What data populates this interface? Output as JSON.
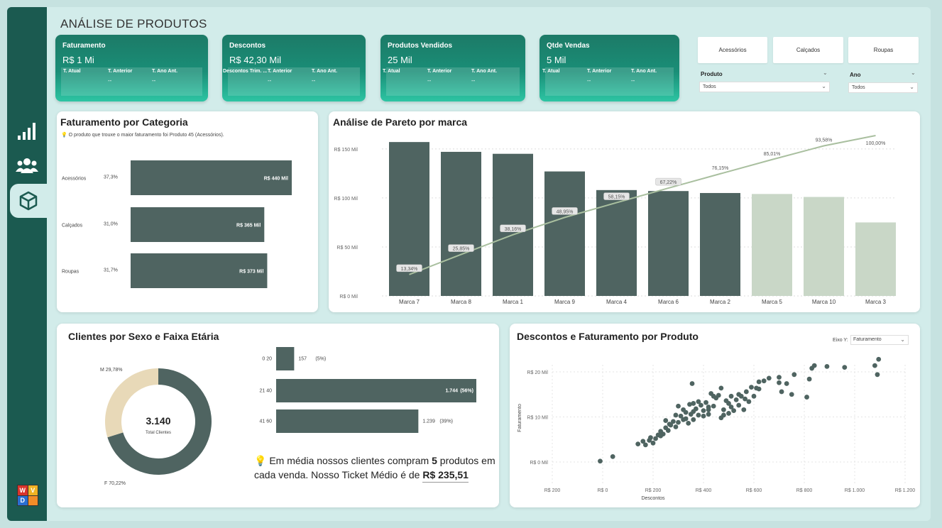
{
  "page_title": "ANÁLISE DE PRODUTOS",
  "colors": {
    "dark": "#4f6461",
    "light": "#c9d7c7",
    "accent": "#1a8e77",
    "cream": "#e8d9b8",
    "line": "#a9bf9f"
  },
  "kpis": [
    {
      "title": "Faturamento",
      "value": "R$ 1 Mi",
      "cols": [
        "T. Atual",
        "T. Anterior",
        "T. Ano Ant."
      ],
      "vals": [
        "",
        "--",
        "--"
      ]
    },
    {
      "title": "Descontos",
      "value": "R$ 42,30 Mil",
      "cols": [
        "Descontos Trim. ...",
        "T. Anterior",
        "T. Ano Ant."
      ],
      "vals": [
        "",
        "--",
        "--"
      ]
    },
    {
      "title": "Produtos Vendidos",
      "value": "25 Mil",
      "cols": [
        "T. Atual",
        "T. Anterior",
        "T. Ano Ant."
      ],
      "vals": [
        "",
        "--",
        "--"
      ]
    },
    {
      "title": "Qtde Vendas",
      "value": "5 Mil",
      "cols": [
        "T. Atual",
        "T. Anterior",
        "T. Ano Ant."
      ],
      "vals": [
        "",
        "--",
        "--"
      ]
    }
  ],
  "filters": {
    "categories": [
      "Acessórios",
      "Calçados",
      "Roupas"
    ],
    "produto": {
      "label": "Produto",
      "value": "Todos"
    },
    "ano": {
      "label": "Ano",
      "value": "Todos"
    }
  },
  "fat_categoria": {
    "title": "Faturamento por Categoria",
    "insight": "O produto que trouxe o maior faturamento foi Produto 45 (Acessórios).",
    "chart_data": {
      "type": "bar",
      "categories": [
        "Acessórios",
        "Calçados",
        "Roupas"
      ],
      "values": [
        440,
        365,
        373
      ],
      "value_labels": [
        "R$ 440 Mil",
        "R$ 365 Mil",
        "R$ 373 Mil"
      ],
      "percents": [
        "37,3%",
        "31,0%",
        "31,7%"
      ]
    }
  },
  "pareto": {
    "title": "Análise de Pareto por marca",
    "chart_data": {
      "type": "bar",
      "categories": [
        "Marca 7",
        "Marca 8",
        "Marca 1",
        "Marca 9",
        "Marca 4",
        "Marca 6",
        "Marca 2",
        "Marca 5",
        "Marca 10",
        "Marca 3"
      ],
      "values": [
        157,
        147,
        145,
        127,
        108,
        107,
        105,
        104,
        101,
        75
      ],
      "highlight": [
        true,
        true,
        true,
        true,
        true,
        true,
        true,
        false,
        false,
        false
      ],
      "cumulative_pct": [
        13.34,
        25.85,
        38.16,
        48.95,
        58.15,
        67.22,
        76.15,
        85.01,
        93.58,
        100.0
      ],
      "cumulative_labels": [
        "13,34%",
        "25,85%",
        "38,16%",
        "48,95%",
        "58,15%",
        "67,22%",
        "76,15%",
        "85,01%",
        "93,58%",
        "100,00%"
      ],
      "ylim": [
        0,
        160
      ],
      "yticks": [
        0,
        50,
        100,
        150
      ],
      "ytick_labels": [
        "R$ 0 Mil",
        "R$ 50 Mil",
        "R$ 100 Mil",
        "R$ 150 Mil"
      ]
    }
  },
  "clientes": {
    "title": "Clientes por Sexo e Faixa Etária",
    "donut": {
      "total": "3.140",
      "total_label": "Total Clientes",
      "chart_data": {
        "type": "pie",
        "categories": [
          "F",
          "M"
        ],
        "values": [
          70.22,
          29.78
        ],
        "labels": [
          "F 70,22%",
          "M 29,78%"
        ]
      }
    },
    "age_bars": {
      "chart_data": {
        "type": "bar",
        "categories": [
          "0 20",
          "21 40",
          "41 60"
        ],
        "values": [
          157,
          1744,
          1239
        ],
        "count_labels": [
          "157",
          "1.744",
          "1.239"
        ],
        "pct_labels": [
          "(5%)",
          "(56%)",
          "(39%)"
        ]
      }
    },
    "insight_pre": "Em média nossos clientes compram ",
    "insight_num": "5",
    "insight_post": " produtos em cada venda. Nosso Ticket Médio é de",
    "ticket": "R$ 235,51"
  },
  "scatter": {
    "title": "Descontos e Faturamento por Produto",
    "axis_selector_label": "Eixo Y:",
    "axis_selector_value": "Faturamento",
    "chart_data": {
      "type": "scatter",
      "xlabel": "Descontos",
      "ylabel": "Faturamento",
      "xlim": [
        -200,
        1200
      ],
      "ylim": [
        0,
        25
      ],
      "xticks": [
        -200,
        0,
        200,
        400,
        600,
        800,
        1000,
        1200
      ],
      "xtick_labels": [
        "R$ 200",
        "R$ 0",
        "R$ 200",
        "R$ 400",
        "R$ 600",
        "R$ 800",
        "R$ 1.000",
        "R$ 1.200"
      ],
      "yticks": [
        0,
        10,
        20
      ],
      "ytick_labels": [
        "R$ 0 Mil",
        "R$ 10 Mil",
        "R$ 20 Mil"
      ],
      "points": [
        [
          -10,
          0.2
        ],
        [
          40,
          1.2
        ],
        [
          140,
          4
        ],
        [
          160,
          4.6
        ],
        [
          170,
          3.8
        ],
        [
          190,
          5.4
        ],
        [
          200,
          4.2
        ],
        [
          210,
          5.2
        ],
        [
          220,
          6
        ],
        [
          230,
          6.8
        ],
        [
          240,
          6.2
        ],
        [
          250,
          7.6
        ],
        [
          260,
          7
        ],
        [
          270,
          8.2
        ],
        [
          280,
          9
        ],
        [
          290,
          7.8
        ],
        [
          300,
          8.8
        ],
        [
          310,
          10.2
        ],
        [
          320,
          9.4
        ],
        [
          330,
          11
        ],
        [
          340,
          8.6
        ],
        [
          345,
          12.8
        ],
        [
          350,
          10.6
        ],
        [
          355,
          17.4
        ],
        [
          360,
          9.4
        ],
        [
          370,
          11.8
        ],
        [
          380,
          10.4
        ],
        [
          390,
          12.6
        ],
        [
          400,
          10.2
        ],
        [
          410,
          13.2
        ],
        [
          420,
          11.6
        ],
        [
          430,
          15.2
        ],
        [
          440,
          12.4
        ],
        [
          450,
          14.2
        ],
        [
          460,
          14.8
        ],
        [
          470,
          9.8
        ],
        [
          480,
          11.6
        ],
        [
          490,
          13.6
        ],
        [
          500,
          10.8
        ],
        [
          510,
          12.2
        ],
        [
          520,
          11.4
        ],
        [
          530,
          13.8
        ],
        [
          540,
          12.6
        ],
        [
          550,
          14.6
        ],
        [
          560,
          11.6
        ],
        [
          570,
          15.6
        ],
        [
          580,
          13.4
        ],
        [
          590,
          16.6
        ],
        [
          600,
          14.6
        ],
        [
          610,
          16.4
        ],
        [
          620,
          17.8
        ],
        [
          640,
          18
        ],
        [
          700,
          18.8
        ],
        [
          710,
          15.6
        ],
        [
          730,
          17.4
        ],
        [
          750,
          15
        ],
        [
          760,
          19.4
        ],
        [
          820,
          18.4
        ],
        [
          830,
          20.8
        ],
        [
          840,
          21.4
        ],
        [
          890,
          21.2
        ],
        [
          960,
          21
        ],
        [
          1080,
          21.4
        ],
        [
          1090,
          19.4
        ],
        [
          1095,
          22.8
        ],
        [
          420,
          12.2
        ],
        [
          380,
          13.4
        ],
        [
          290,
          10.4
        ],
        [
          265,
          8.4
        ],
        [
          185,
          4.8
        ],
        [
          330,
          9.6
        ],
        [
          300,
          12.4
        ],
        [
          360,
          11.2
        ],
        [
          440,
          14.6
        ],
        [
          500,
          13
        ],
        [
          565,
          14
        ],
        [
          620,
          16.2
        ],
        [
          700,
          17.6
        ],
        [
          810,
          14.4
        ],
        [
          540,
          15
        ],
        [
          480,
          10.4
        ],
        [
          400,
          11.4
        ],
        [
          360,
          13
        ],
        [
          250,
          9.2
        ],
        [
          230,
          5.8
        ],
        [
          320,
          11.6
        ],
        [
          420,
          10.6
        ],
        [
          470,
          16.4
        ],
        [
          510,
          14.6
        ],
        [
          660,
          18.6
        ]
      ]
    }
  }
}
